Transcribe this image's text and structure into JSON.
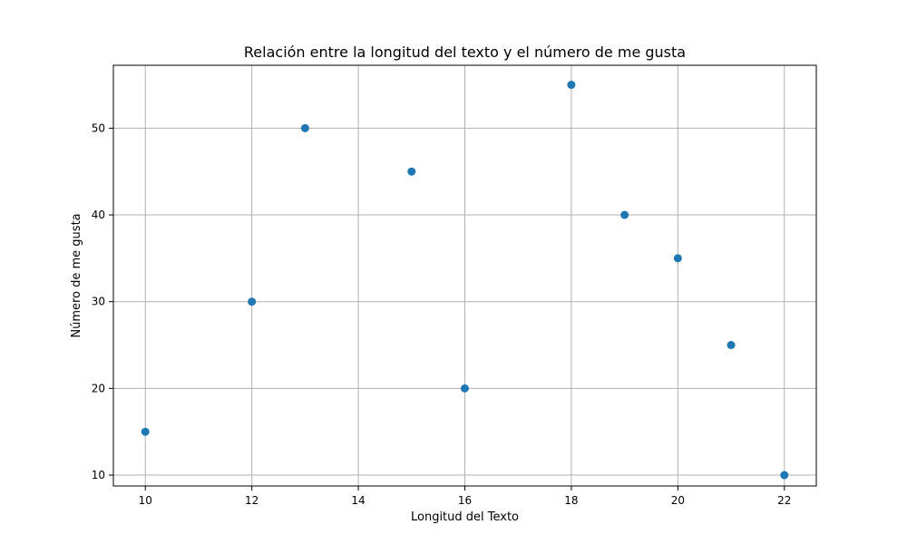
{
  "chart_data": {
    "type": "scatter",
    "title": "Relación entre la longitud del texto y el número de me gusta",
    "xlabel": "Longitud del Texto",
    "ylabel": "Número de me gusta",
    "xlim": [
      9.4,
      22.6
    ],
    "ylim": [
      8.75,
      57.25
    ],
    "x_ticks": [
      10,
      12,
      14,
      16,
      18,
      20,
      22
    ],
    "y_ticks": [
      10,
      20,
      30,
      40,
      50
    ],
    "grid": true,
    "color": "#1f77b4",
    "points": [
      {
        "x": 10,
        "y": 15
      },
      {
        "x": 12,
        "y": 30
      },
      {
        "x": 13,
        "y": 50
      },
      {
        "x": 15,
        "y": 45
      },
      {
        "x": 16,
        "y": 20
      },
      {
        "x": 18,
        "y": 55
      },
      {
        "x": 19,
        "y": 40
      },
      {
        "x": 20,
        "y": 35
      },
      {
        "x": 21,
        "y": 25
      },
      {
        "x": 22,
        "y": 10
      }
    ]
  }
}
